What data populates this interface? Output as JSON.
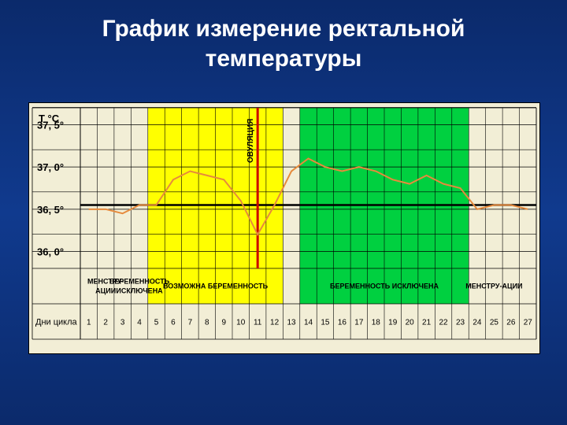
{
  "title_line1": "График измерение ректальной",
  "title_line2": "температуры",
  "title_fontsize": 30,
  "background_gradient": [
    "#0b2a6b",
    "#103a8e",
    "#0b2a6b"
  ],
  "chart": {
    "background_color": "#f2eed6",
    "grid_color": "#000000",
    "y_axis_title": "T °C",
    "y_ticks": [
      "37, 5°",
      "37, 0°",
      "36, 5°",
      "36, 0°"
    ],
    "y_values": [
      37.5,
      37.0,
      36.5,
      36.0
    ],
    "x_axis_title": "Дни цикла",
    "days": [
      1,
      2,
      3,
      4,
      5,
      6,
      7,
      8,
      9,
      10,
      11,
      12,
      13,
      14,
      15,
      16,
      17,
      18,
      19,
      20,
      21,
      22,
      23,
      24,
      25,
      26,
      27
    ],
    "line_color": "#e68a3c",
    "line_width": 2,
    "baseline_y": 36.55,
    "baseline_color": "#000000",
    "baseline_width": 2.5,
    "ovulation_marker_day": 11,
    "ovulation_marker_color": "#cc0000",
    "ovulation_marker_width": 3,
    "ovulation_label": "ОВУЛЯЦИЯ",
    "data_points": [
      {
        "day": 1,
        "t": 36.5
      },
      {
        "day": 2,
        "t": 36.5
      },
      {
        "day": 3,
        "t": 36.45
      },
      {
        "day": 4,
        "t": 36.55
      },
      {
        "day": 5,
        "t": 36.55
      },
      {
        "day": 6,
        "t": 36.85
      },
      {
        "day": 7,
        "t": 36.95
      },
      {
        "day": 8,
        "t": 36.9
      },
      {
        "day": 9,
        "t": 36.85
      },
      {
        "day": 10,
        "t": 36.6
      },
      {
        "day": 11,
        "t": 36.2
      },
      {
        "day": 12,
        "t": 36.55
      },
      {
        "day": 13,
        "t": 36.95
      },
      {
        "day": 14,
        "t": 37.1
      },
      {
        "day": 15,
        "t": 37.0
      },
      {
        "day": 16,
        "t": 36.95
      },
      {
        "day": 17,
        "t": 37.0
      },
      {
        "day": 18,
        "t": 36.95
      },
      {
        "day": 19,
        "t": 36.85
      },
      {
        "day": 20,
        "t": 36.8
      },
      {
        "day": 21,
        "t": 36.9
      },
      {
        "day": 22,
        "t": 36.8
      },
      {
        "day": 23,
        "t": 36.75
      },
      {
        "day": 24,
        "t": 36.5
      },
      {
        "day": 25,
        "t": 36.55
      },
      {
        "day": 26,
        "t": 36.55
      },
      {
        "day": 27,
        "t": 36.5
      }
    ],
    "zones": [
      {
        "label": "МЕНСТРУ-АЦИИ",
        "start": 1,
        "end": 3,
        "fill": "none",
        "text_align": "center"
      },
      {
        "label": "БЕРЕМЕННОСТЬ ИСКЛЮЧЕНА",
        "start": 3,
        "end": 5,
        "fill": "none",
        "text_align": "left"
      },
      {
        "label": "ВОЗМОЖНА БЕРЕМЕННОСТЬ",
        "start": 5,
        "end": 12,
        "fill": "#ffff00",
        "top_fill": "#ffff00"
      },
      {
        "label": "",
        "start": 12,
        "end": 14,
        "fill": "none"
      },
      {
        "label": "БЕРЕМЕННОСТЬ ИСКЛЮЧЕНА",
        "start": 14,
        "end": 23,
        "fill": "#00d040",
        "top_fill": "#00d040"
      },
      {
        "label": "МЕНСТРУ-АЦИИ",
        "start": 23,
        "end": 27,
        "fill": "none",
        "text_align": "center"
      }
    ]
  }
}
